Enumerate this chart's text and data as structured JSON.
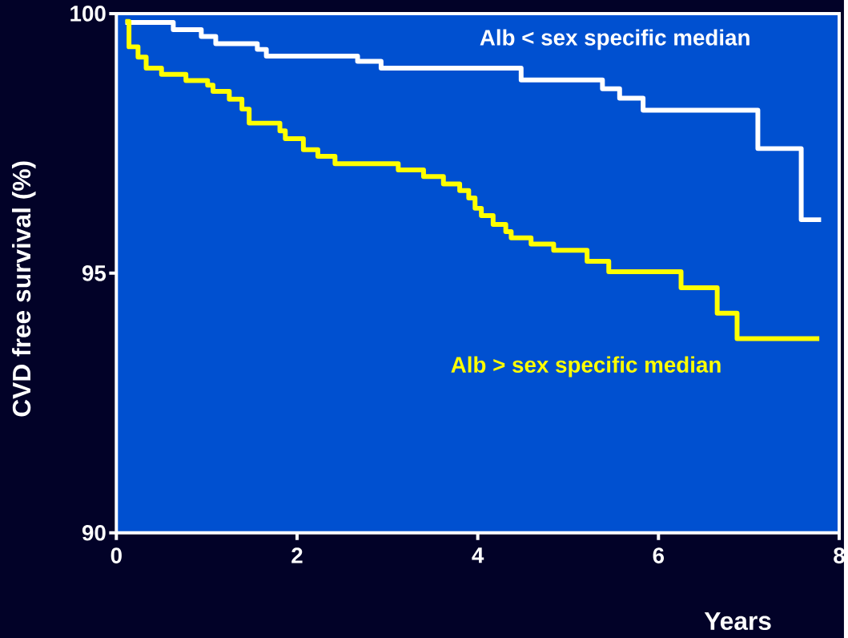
{
  "chart_data": {
    "type": "step",
    "xlabel": "Years",
    "ylabel": "CVD free survival (%)",
    "xlim": [
      0,
      8
    ],
    "ylim": [
      90,
      100
    ],
    "xticks": [
      0,
      2,
      4,
      6,
      8
    ],
    "yticks": [
      90,
      95,
      100
    ],
    "grid": false,
    "legend": false,
    "marker": "none",
    "line_style": "solid",
    "series": [
      {
        "name": "Alb < sex specific median",
        "color": "#ffffff",
        "x": [
          0.1,
          0.63,
          0.94,
          1.1,
          1.56,
          1.66,
          2.67,
          2.93,
          4.48,
          5.38,
          5.57,
          5.83,
          7.1,
          7.58,
          7.8
        ],
        "values": [
          99.83,
          99.69,
          99.56,
          99.42,
          99.31,
          99.18,
          99.08,
          98.95,
          98.72,
          98.55,
          98.37,
          98.14,
          97.4,
          96.03,
          96.03
        ]
      },
      {
        "name": "Alb > sex specific median",
        "color": "#ffff00",
        "x": [
          0.1,
          0.14,
          0.24,
          0.33,
          0.5,
          0.77,
          1.01,
          1.07,
          1.25,
          1.39,
          1.47,
          1.81,
          1.87,
          2.07,
          2.23,
          2.42,
          3.12,
          3.4,
          3.62,
          3.8,
          3.9,
          3.97,
          4.04,
          4.17,
          4.31,
          4.37,
          4.59,
          4.84,
          5.21,
          5.45,
          6.25,
          6.65,
          6.87,
          7.78
        ],
        "values": [
          99.85,
          99.36,
          99.16,
          98.95,
          98.83,
          98.71,
          98.62,
          98.5,
          98.35,
          98.16,
          97.89,
          97.74,
          97.59,
          97.38,
          97.25,
          97.11,
          96.99,
          96.86,
          96.72,
          96.59,
          96.45,
          96.25,
          96.11,
          95.94,
          95.8,
          95.68,
          95.56,
          95.44,
          95.23,
          95.03,
          94.72,
          94.23,
          93.74,
          93.74
        ]
      }
    ]
  }
}
